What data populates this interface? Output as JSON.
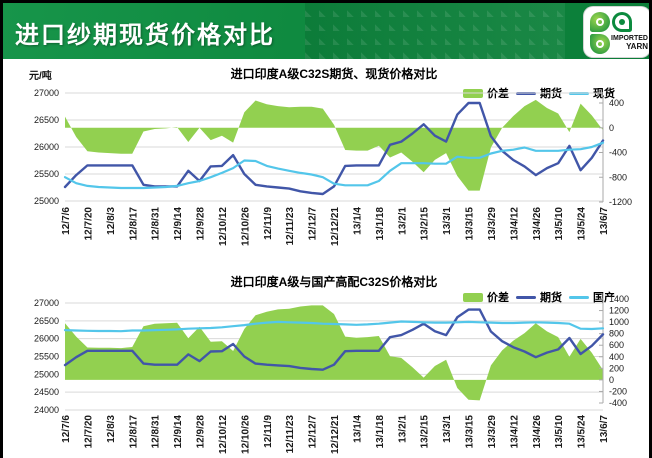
{
  "header": {
    "title": "进口纱期现货价格对比",
    "logo_lines": [
      "IMPORTED",
      "YARN"
    ]
  },
  "unit_label": "元/吨",
  "colors": {
    "banner_green": "#0f8a40",
    "spread_green": "#92d050",
    "futures_blue": "#4156a8",
    "spot_cyan": "#53c6ea",
    "grid": "#d9d9d9",
    "axis_line": "#aaaaaa"
  },
  "chart_data": [
    {
      "type": "area",
      "title": "进口印度A级C32S期货、现货价格对比",
      "legend": [
        "价差",
        "期货",
        "现货"
      ],
      "left_axis": {
        "ticks": [
          27000,
          26500,
          26000,
          25500,
          25000
        ],
        "max": 27000,
        "min": 25000
      },
      "right_axis": {
        "ticks": [
          400,
          0,
          -400,
          -800,
          -1200
        ],
        "max": 400,
        "min": -1200
      },
      "x_tick_labels": [
        "12/7/6",
        "12/7/20",
        "12/8/3",
        "12/8/17",
        "12/8/31",
        "12/9/14",
        "12/9/28",
        "12/10/12",
        "12/10/26",
        "12/11/9",
        "12/11/23",
        "12/12/7",
        "12/12/21",
        "13/1/4",
        "13/1/18",
        "13/2/1",
        "13/2/15",
        "13/3/1",
        "13/3/15",
        "13/3/29",
        "13/4/12",
        "13/4/26",
        "13/5/10",
        "13/5/24",
        "13/6/7"
      ],
      "series": [
        {
          "name": "价差",
          "kind": "area",
          "axis": "right",
          "values": [
            180,
            -150,
            -380,
            -400,
            -410,
            -420,
            -420,
            -60,
            -20,
            -10,
            10,
            -230,
            0,
            -200,
            -130,
            -240,
            250,
            440,
            380,
            350,
            330,
            340,
            340,
            310,
            50,
            -360,
            -370,
            -370,
            -290,
            -480,
            -400,
            -550,
            -720,
            -520,
            -410,
            -780,
            -1015,
            -1015,
            -320,
            0,
            190,
            350,
            450,
            320,
            230,
            -70,
            390,
            200,
            -40
          ]
        },
        {
          "name": "期货",
          "kind": "line",
          "axis": "left",
          "values": [
            25260,
            25480,
            25660,
            25660,
            25660,
            25660,
            25660,
            25300,
            25270,
            25270,
            25270,
            25560,
            25370,
            25640,
            25650,
            25850,
            25500,
            25300,
            25270,
            25250,
            25230,
            25180,
            25150,
            25130,
            25270,
            25650,
            25660,
            25660,
            25660,
            26040,
            26100,
            26250,
            26420,
            26210,
            26100,
            26600,
            26815,
            26815,
            26200,
            25930,
            25760,
            25640,
            25480,
            25610,
            25700,
            26020,
            25570,
            25800,
            26120
          ]
        },
        {
          "name": "现货",
          "kind": "line",
          "axis": "left",
          "values": [
            25440,
            25330,
            25280,
            25260,
            25250,
            25240,
            25240,
            25240,
            25250,
            25260,
            25280,
            25330,
            25370,
            25440,
            25520,
            25610,
            25750,
            25740,
            25650,
            25600,
            25560,
            25520,
            25490,
            25440,
            25320,
            25290,
            25290,
            25290,
            25370,
            25560,
            25700,
            25700,
            25700,
            25690,
            25690,
            25820,
            25800,
            25800,
            25880,
            25930,
            25950,
            25990,
            25930,
            25930,
            25930,
            25950,
            25960,
            26000,
            26080
          ]
        }
      ]
    },
    {
      "type": "area",
      "title": "进口印度A级与国产高配C32S价格对比",
      "legend": [
        "价差",
        "期货",
        "国产"
      ],
      "left_axis": {
        "ticks": [
          27000,
          26500,
          26000,
          25500,
          25000,
          24500,
          24000
        ],
        "max": 27000,
        "min": 24000
      },
      "right_axis": {
        "ticks": [
          1400,
          1200,
          1000,
          800,
          600,
          400,
          200,
          0,
          -200,
          -400
        ],
        "max": 1400,
        "min": -400
      },
      "x_tick_labels": [
        "12/7/6",
        "12/7/20",
        "12/8/3",
        "12/8/17",
        "12/8/31",
        "12/9/14",
        "12/9/28",
        "12/10/12",
        "12/10/26",
        "12/11/9",
        "12/11/23",
        "12/12/7",
        "12/12/21",
        "13/1/4",
        "13/1/18",
        "13/2/1",
        "13/2/15",
        "13/3/1",
        "13/3/15",
        "13/3/29",
        "13/4/12",
        "13/4/26",
        "13/5/10",
        "13/5/24",
        "13/6/7"
      ],
      "series": [
        {
          "name": "价差",
          "kind": "area",
          "axis": "right",
          "values": [
            980,
            750,
            560,
            555,
            555,
            550,
            570,
            930,
            970,
            980,
            990,
            720,
            920,
            660,
            670,
            500,
            880,
            1120,
            1180,
            1220,
            1230,
            1270,
            1290,
            1290,
            1140,
            750,
            730,
            740,
            760,
            410,
            380,
            220,
            40,
            240,
            350,
            -140,
            -345,
            -355,
            250,
            510,
            680,
            810,
            980,
            840,
            740,
            400,
            710,
            470,
            170
          ]
        },
        {
          "name": "期货",
          "kind": "line",
          "axis": "left",
          "values": [
            25260,
            25480,
            25660,
            25660,
            25660,
            25660,
            25660,
            25300,
            25270,
            25270,
            25270,
            25560,
            25370,
            25640,
            25650,
            25850,
            25500,
            25300,
            25270,
            25250,
            25230,
            25180,
            25150,
            25130,
            25270,
            25650,
            25660,
            25660,
            25660,
            26040,
            26100,
            26250,
            26420,
            26210,
            26100,
            26600,
            26815,
            26815,
            26200,
            25930,
            25760,
            25640,
            25480,
            25610,
            25700,
            26020,
            25570,
            25800,
            26120
          ]
        },
        {
          "name": "国产",
          "kind": "line",
          "axis": "left",
          "values": [
            26240,
            26230,
            26220,
            26215,
            26215,
            26210,
            26230,
            26230,
            26240,
            26250,
            26260,
            26280,
            26290,
            26300,
            26320,
            26350,
            26380,
            26420,
            26450,
            26470,
            26460,
            26450,
            26440,
            26420,
            26410,
            26400,
            26390,
            26400,
            26420,
            26450,
            26480,
            26470,
            26460,
            26450,
            26450,
            26460,
            26470,
            26460,
            26450,
            26440,
            26440,
            26450,
            26460,
            26450,
            26440,
            26420,
            26280,
            26270,
            26290
          ]
        }
      ]
    }
  ]
}
